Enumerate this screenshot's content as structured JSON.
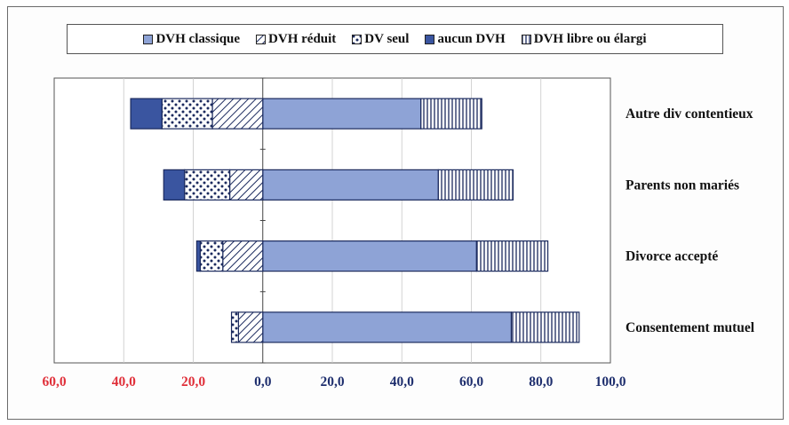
{
  "chart_data": {
    "type": "bar",
    "orientation": "horizontal",
    "stacked": true,
    "diverging": true,
    "categories": [
      "Autre div contentieux",
      "Parents non mariés",
      "Divorce accepté",
      "Consentement mutuel"
    ],
    "series": [
      {
        "name": "DVH classique",
        "key": "classique",
        "side": "positive",
        "color": "#8ea3d6",
        "values": [
          45.5,
          50.5,
          61.5,
          71.5
        ]
      },
      {
        "name": "DVH réduit",
        "key": "reduit",
        "side": "negative",
        "color": "#ffffff",
        "values": [
          14.5,
          9.5,
          11.5,
          7.0
        ]
      },
      {
        "name": "DV seul",
        "key": "dvseul",
        "side": "negative",
        "color": "#ffffff",
        "values": [
          14.5,
          13.0,
          6.5,
          2.0
        ]
      },
      {
        "name": "aucun DVH",
        "key": "aucun",
        "side": "negative",
        "color": "#3a55a0",
        "values": [
          9.0,
          6.0,
          1.0,
          0.0
        ]
      },
      {
        "name": "DVH libre ou élargi",
        "key": "libre",
        "side": "positive",
        "color": "#ffffff",
        "values": [
          17.5,
          21.5,
          20.5,
          19.5
        ]
      }
    ],
    "xlim": [
      -60,
      100
    ],
    "x_ticks": [
      {
        "value": -60,
        "label": "60,0",
        "color": "#e0303a"
      },
      {
        "value": -40,
        "label": "40,0",
        "color": "#e0303a"
      },
      {
        "value": -20,
        "label": "20,0",
        "color": "#e0303a"
      },
      {
        "value": 0,
        "label": "0,0",
        "color": "#1f2f6e"
      },
      {
        "value": 20,
        "label": "20,0",
        "color": "#1f2f6e"
      },
      {
        "value": 40,
        "label": "40,0",
        "color": "#1f2f6e"
      },
      {
        "value": 60,
        "label": "60,0",
        "color": "#1f2f6e"
      },
      {
        "value": 80,
        "label": "80,0",
        "color": "#1f2f6e"
      },
      {
        "value": 100,
        "label": "100,0",
        "color": "#1f2f6e"
      }
    ],
    "grid": "vertical",
    "legend_position": "top"
  }
}
